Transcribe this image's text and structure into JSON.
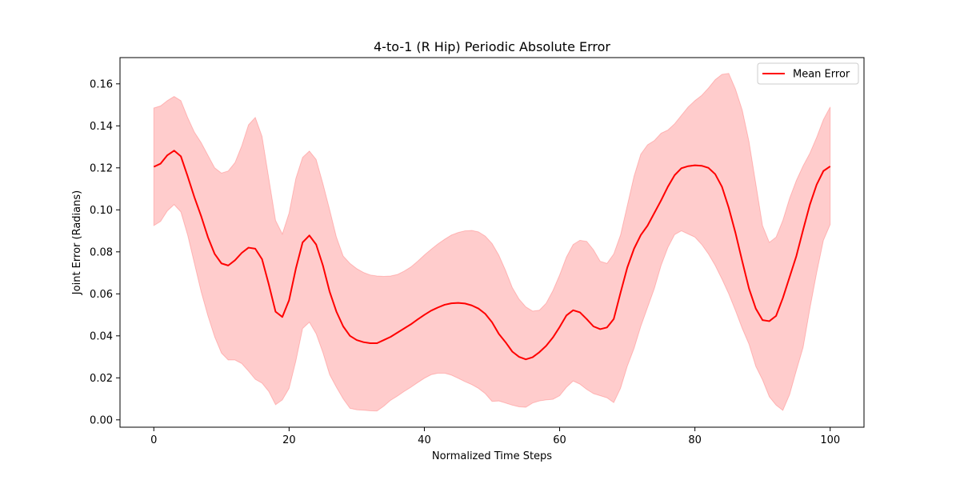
{
  "chart_data": {
    "type": "line",
    "title": "4-to-1 (R Hip) Periodic Absolute Error",
    "xlabel": "Normalized Time Steps",
    "ylabel": "Joint Error (Radians)",
    "xlim": [
      -5,
      105
    ],
    "ylim": [
      -0.0035,
      0.1725
    ],
    "x_ticks": [
      0,
      20,
      40,
      60,
      80,
      100
    ],
    "x_tick_labels": [
      "0",
      "20",
      "40",
      "60",
      "80",
      "100"
    ],
    "y_ticks": [
      0.0,
      0.02,
      0.04,
      0.06,
      0.08,
      0.1,
      0.12,
      0.14,
      0.16
    ],
    "y_tick_labels": [
      "0.00",
      "0.02",
      "0.04",
      "0.06",
      "0.08",
      "0.10",
      "0.12",
      "0.14",
      "0.16"
    ],
    "grid": false,
    "legend": {
      "position": "top-right",
      "entries": [
        "Mean Error"
      ]
    },
    "colors": {
      "line": "#ff0000",
      "band": "#ff0000",
      "band_opacity": 0.2
    },
    "x": [
      0,
      1,
      2,
      3,
      4,
      5,
      6,
      7,
      8,
      9,
      10,
      11,
      12,
      13,
      14,
      15,
      16,
      17,
      18,
      19,
      20,
      21,
      22,
      23,
      24,
      25,
      26,
      27,
      28,
      29,
      30,
      31,
      32,
      33,
      34,
      35,
      36,
      37,
      38,
      39,
      40,
      41,
      42,
      43,
      44,
      45,
      46,
      47,
      48,
      49,
      50,
      51,
      52,
      53,
      54,
      55,
      56,
      57,
      58,
      59,
      60,
      61,
      62,
      63,
      64,
      65,
      66,
      67,
      68,
      69,
      70,
      71,
      72,
      73,
      74,
      75,
      76,
      77,
      78,
      79,
      80,
      81,
      82,
      83,
      84,
      85,
      86,
      87,
      88,
      89,
      90,
      91,
      92,
      93,
      94,
      95,
      96,
      97,
      98,
      99,
      100
    ],
    "series": [
      {
        "name": "Mean Error",
        "values": [
          0.1205,
          0.122,
          0.126,
          0.1282,
          0.1255,
          0.116,
          0.106,
          0.097,
          0.087,
          0.079,
          0.0745,
          0.0735,
          0.076,
          0.0795,
          0.082,
          0.0815,
          0.0765,
          0.0645,
          0.0515,
          0.049,
          0.057,
          0.072,
          0.0845,
          0.0878,
          0.0835,
          0.0735,
          0.061,
          0.0515,
          0.0445,
          0.04,
          0.038,
          0.037,
          0.0365,
          0.0365,
          0.038,
          0.0395,
          0.0415,
          0.0435,
          0.0455,
          0.0478,
          0.05,
          0.052,
          0.0535,
          0.0548,
          0.0555,
          0.0557,
          0.0554,
          0.0545,
          0.053,
          0.0505,
          0.0465,
          0.041,
          0.037,
          0.0325,
          0.03,
          0.0288,
          0.0298,
          0.0322,
          0.0352,
          0.0392,
          0.0442,
          0.0497,
          0.0522,
          0.0512,
          0.048,
          0.0445,
          0.0432,
          0.044,
          0.048,
          0.0605,
          0.0725,
          0.0815,
          0.088,
          0.0925,
          0.0985,
          0.1045,
          0.111,
          0.1165,
          0.1198,
          0.1208,
          0.1212,
          0.121,
          0.12,
          0.117,
          0.111,
          0.101,
          0.089,
          0.0755,
          0.0625,
          0.053,
          0.0475,
          0.047,
          0.0495,
          0.058,
          0.068,
          0.078,
          0.0905,
          0.1025,
          0.112,
          0.1185,
          0.1207
        ]
      },
      {
        "name": "",
        "band_upper": [
          0.1485,
          0.1495,
          0.152,
          0.154,
          0.152,
          0.144,
          0.137,
          0.132,
          0.126,
          0.12,
          0.1175,
          0.1185,
          0.1225,
          0.1305,
          0.1405,
          0.144,
          0.135,
          0.115,
          0.095,
          0.0885,
          0.0985,
          0.115,
          0.125,
          0.128,
          0.124,
          0.1125,
          0.1,
          0.087,
          0.078,
          0.0745,
          0.072,
          0.0702,
          0.069,
          0.0685,
          0.0683,
          0.0685,
          0.0692,
          0.0708,
          0.0728,
          0.0755,
          0.0785,
          0.0812,
          0.0838,
          0.086,
          0.088,
          0.0892,
          0.09,
          0.0902,
          0.0895,
          0.0875,
          0.084,
          0.0785,
          0.0712,
          0.063,
          0.0575,
          0.0538,
          0.0518,
          0.0522,
          0.0555,
          0.0615,
          0.069,
          0.0775,
          0.0835,
          0.0855,
          0.085,
          0.081,
          0.0755,
          0.0745,
          0.079,
          0.088,
          0.102,
          0.116,
          0.1265,
          0.131,
          0.133,
          0.1365,
          0.138,
          0.141,
          0.145,
          0.149,
          0.152,
          0.1545,
          0.158,
          0.162,
          0.1645,
          0.165,
          0.1575,
          0.1475,
          0.1325,
          0.1125,
          0.0925,
          0.0845,
          0.087,
          0.095,
          0.1055,
          0.114,
          0.121,
          0.127,
          0.1345,
          0.143,
          0.149
        ]
      },
      {
        "name": "",
        "band_lower": [
          0.0925,
          0.0945,
          0.0995,
          0.1025,
          0.099,
          0.088,
          0.0745,
          0.061,
          0.0495,
          0.0395,
          0.0318,
          0.0285,
          0.0285,
          0.0268,
          0.0232,
          0.0193,
          0.0175,
          0.0135,
          0.0072,
          0.0095,
          0.015,
          0.028,
          0.0435,
          0.0465,
          0.041,
          0.032,
          0.0215,
          0.0155,
          0.01,
          0.0055,
          0.0048,
          0.0046,
          0.0043,
          0.0042,
          0.0065,
          0.0093,
          0.0113,
          0.0135,
          0.0155,
          0.0177,
          0.0198,
          0.0215,
          0.0222,
          0.0222,
          0.0213,
          0.0198,
          0.0182,
          0.0168,
          0.015,
          0.0125,
          0.0088,
          0.009,
          0.008,
          0.007,
          0.0062,
          0.006,
          0.008,
          0.009,
          0.0095,
          0.0098,
          0.0115,
          0.0155,
          0.0185,
          0.017,
          0.0145,
          0.0125,
          0.0115,
          0.0105,
          0.0082,
          0.015,
          0.0255,
          0.034,
          0.0445,
          0.0535,
          0.0625,
          0.0735,
          0.082,
          0.0882,
          0.09,
          0.0885,
          0.087,
          0.0835,
          0.079,
          0.0735,
          0.067,
          0.06,
          0.052,
          0.0435,
          0.036,
          0.0255,
          0.019,
          0.011,
          0.007,
          0.0045,
          0.012,
          0.0235,
          0.0345,
          0.053,
          0.07,
          0.0855,
          0.093
        ]
      }
    ]
  }
}
